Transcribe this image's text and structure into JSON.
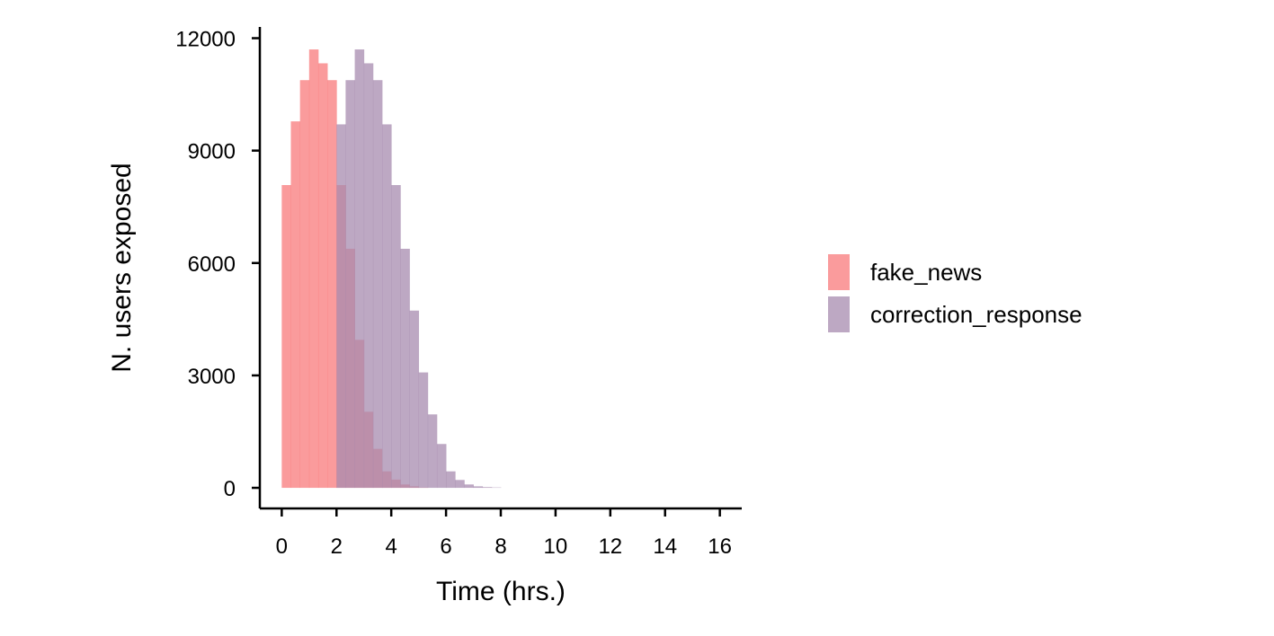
{
  "chart_data": {
    "type": "bar",
    "subtype": "overlapping-histogram",
    "title": "",
    "xlabel": "Time (hrs.)",
    "ylabel": "N. users exposed",
    "xlim": [
      -0.8,
      16.8
    ],
    "ylim": [
      -550,
      12300
    ],
    "x_ticks": [
      0,
      2,
      4,
      6,
      8,
      10,
      12,
      14,
      16
    ],
    "x_tick_labels": [
      "0",
      "2",
      "4",
      "6",
      "8",
      "10",
      "12",
      "14",
      "16"
    ],
    "y_ticks": [
      0,
      3000,
      6000,
      9000,
      12000
    ],
    "y_tick_labels": [
      "0",
      "3000",
      "6000",
      "9000",
      "12000"
    ],
    "bin_width": 0.333,
    "grid": false,
    "legend_position": "right",
    "series": [
      {
        "name": "fake_news",
        "color": "#F8797B",
        "opacity": 0.75,
        "bin_starts": [
          0,
          0.333,
          0.667,
          1.0,
          1.333,
          1.667,
          2.0,
          2.333,
          2.667,
          3.0,
          3.333,
          3.667,
          4.0,
          4.333,
          4.667,
          5.0
        ],
        "values": [
          8080,
          9780,
          10880,
          11700,
          11330,
          10880,
          8080,
          6380,
          3950,
          2030,
          1040,
          440,
          220,
          90,
          40,
          10
        ]
      },
      {
        "name": "correction_response",
        "color": "#A78BAF",
        "opacity": 0.75,
        "bin_starts": [
          2.0,
          2.333,
          2.667,
          3.0,
          3.333,
          3.667,
          4.0,
          4.333,
          4.667,
          5.0,
          5.333,
          5.667,
          6.0,
          6.333,
          6.667,
          7.0,
          7.333,
          7.667
        ],
        "values": [
          9700,
          10880,
          11700,
          11330,
          10880,
          9700,
          8080,
          6380,
          4730,
          3080,
          1960,
          1170,
          440,
          210,
          90,
          40,
          20,
          10
        ]
      }
    ]
  }
}
